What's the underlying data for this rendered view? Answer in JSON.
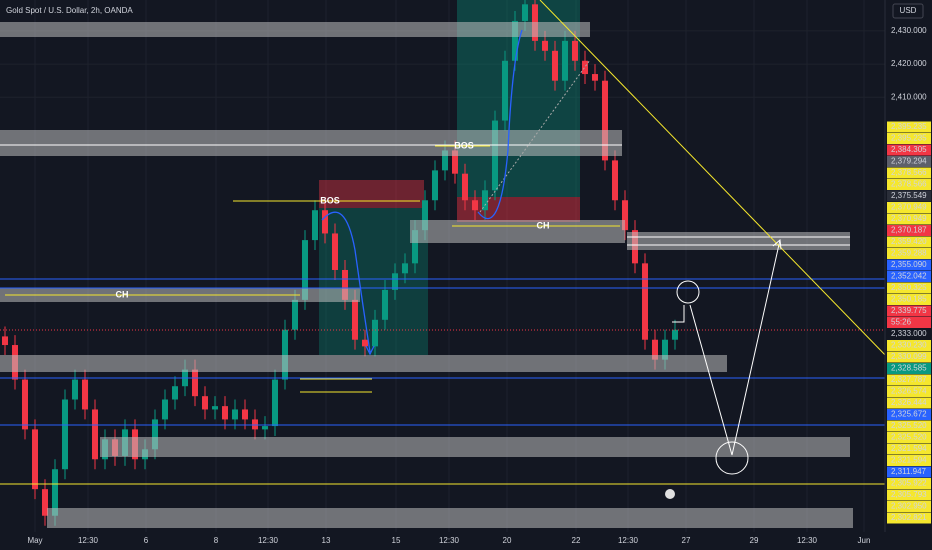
{
  "chart_data": {
    "type": "candlestick",
    "title": "Gold Spot / U.S. Dollar, 2h, OANDA",
    "currency": "USD",
    "countdown": "55:26",
    "up_color": "#089981",
    "down_color": "#f23645",
    "xlim": [
      -0.5,
      88
    ],
    "ylim": [
      2279.1,
      2439.3
    ],
    "xticks": [
      {
        "value": 3,
        "label": "May"
      },
      {
        "value": 8.3,
        "label": "12:30"
      },
      {
        "value": 14.1,
        "label": "6"
      },
      {
        "value": 21.1,
        "label": "8"
      },
      {
        "value": 26.3,
        "label": "12:30"
      },
      {
        "value": 32.1,
        "label": "13"
      },
      {
        "value": 39.1,
        "label": "15"
      },
      {
        "value": 44.4,
        "label": "12:30"
      },
      {
        "value": 50.2,
        "label": "20"
      },
      {
        "value": 57.1,
        "label": "22"
      },
      {
        "value": 62.3,
        "label": "12:30"
      },
      {
        "value": 68.1,
        "label": "27"
      },
      {
        "value": 74.9,
        "label": "29"
      },
      {
        "value": 80.2,
        "label": "12:30"
      },
      {
        "value": 85.9,
        "label": "Jun"
      }
    ],
    "yticks": [
      {
        "value": 2430,
        "label": "2,430.000"
      },
      {
        "value": 2420,
        "label": "2,420.000"
      },
      {
        "value": 2410,
        "label": "2,410.000"
      }
    ],
    "grid": true,
    "open": [
      2338,
      2335.4,
      2325,
      2310,
      2292,
      2284,
      2298,
      2319,
      2325,
      2316,
      2301,
      2307,
      2302,
      2310,
      2301,
      2304,
      2313,
      2319,
      2323,
      2328,
      2320,
      2316,
      2317,
      2313,
      2316,
      2313,
      2310,
      2311,
      2325,
      2340,
      2349,
      2367,
      2376,
      2369,
      2358,
      2349,
      2337,
      2335,
      2343,
      2352,
      2357,
      2360,
      2370,
      2379,
      2388,
      2394,
      2387,
      2379,
      2376,
      2382,
      2403,
      2421,
      2433,
      2438,
      2427,
      2424,
      2415,
      2427,
      2421,
      2417,
      2415,
      2391,
      2379,
      2370,
      2360,
      2337,
      2331,
      2337
    ],
    "high": [
      2341,
      2338.4,
      2328,
      2313,
      2295,
      2301,
      2322,
      2328,
      2328,
      2319,
      2310,
      2310,
      2313,
      2313,
      2307,
      2316,
      2322,
      2326,
      2331,
      2331,
      2323,
      2320,
      2320,
      2319,
      2319,
      2316,
      2314,
      2328,
      2343,
      2352,
      2370,
      2379,
      2379,
      2372,
      2361,
      2352,
      2340,
      2346,
      2355,
      2360,
      2363,
      2373,
      2382,
      2391,
      2397,
      2397,
      2390,
      2382,
      2385,
      2406,
      2424,
      2436,
      2440,
      2440,
      2430,
      2427,
      2430,
      2430,
      2424,
      2420,
      2418,
      2394,
      2382,
      2373,
      2363,
      2340,
      2340,
      2343
    ],
    "low": [
      2332.4,
      2322,
      2307,
      2289,
      2281,
      2281,
      2295,
      2316,
      2313,
      2298,
      2298,
      2299,
      2299,
      2298,
      2298,
      2301,
      2310,
      2316,
      2320,
      2317,
      2313,
      2313,
      2310,
      2310,
      2310,
      2307,
      2307,
      2308,
      2322,
      2337,
      2346,
      2364,
      2366,
      2355,
      2346,
      2334,
      2332,
      2332,
      2340,
      2349,
      2354,
      2357,
      2367,
      2376,
      2385,
      2384,
      2376,
      2373,
      2373,
      2379,
      2400,
      2418,
      2430,
      2424,
      2421,
      2412,
      2412,
      2418,
      2414,
      2412,
      2388,
      2376,
      2367,
      2357,
      2334,
      2328,
      2328,
      2334
    ],
    "close": [
      2335.4,
      2325,
      2310,
      2292,
      2284,
      2298,
      2319,
      2325,
      2316,
      2301,
      2307,
      2302,
      2310,
      2301,
      2304,
      2313,
      2319,
      2323,
      2328,
      2320,
      2316,
      2317,
      2313,
      2316,
      2313,
      2310,
      2311,
      2325,
      2340,
      2349,
      2367,
      2376,
      2369,
      2358,
      2349,
      2337,
      2335,
      2343,
      2352,
      2357,
      2360,
      2370,
      2379,
      2388,
      2394,
      2387,
      2379,
      2376,
      2382,
      2403,
      2421,
      2433,
      2438,
      2427,
      2424,
      2415,
      2427,
      2421,
      2417,
      2415,
      2391,
      2379,
      2370,
      2360,
      2337,
      2331,
      2337,
      2340
    ],
    "price_labels": [
      {
        "value": 2395.235,
        "label": "2,395.235",
        "color": "yellow"
      },
      {
        "value": 2395.235,
        "label": "2,395.235",
        "color": "yellow"
      },
      {
        "value": 2384.305,
        "label": "2,384.305",
        "color": "red"
      },
      {
        "value": 2379.294,
        "label": "2,379.294",
        "color": "gray"
      },
      {
        "value": 2378.566,
        "label": "2,378.566",
        "color": "yellow"
      },
      {
        "value": 2378.566,
        "label": "2,378.566",
        "color": "yellow"
      },
      {
        "value": 2375.549,
        "label": "2,375.549",
        "color": "dark"
      },
      {
        "value": 2370.949,
        "label": "2,370.949",
        "color": "yellow"
      },
      {
        "value": 2370.949,
        "label": "2,370.949",
        "color": "yellow"
      },
      {
        "value": 2370.187,
        "label": "2,370.187",
        "color": "red"
      },
      {
        "value": 2359.42,
        "label": "2,359.420",
        "color": "yellow"
      },
      {
        "value": 2359.288,
        "label": "2,359.288",
        "color": "yellow"
      },
      {
        "value": 2355.09,
        "label": "2,355.090",
        "color": "blue"
      },
      {
        "value": 2352.042,
        "label": "2,352.042",
        "color": "blue"
      },
      {
        "value": 2350.325,
        "label": "2,350.325",
        "color": "yellow"
      },
      {
        "value": 2350.185,
        "label": "2,350.185",
        "color": "yellow"
      },
      {
        "value": 2339.775,
        "label": "2,339.775",
        "color": "red"
      },
      {
        "value": 2333,
        "label": "2,333.000",
        "color": "plain"
      },
      {
        "value": 2330.23,
        "label": "2,330.230",
        "color": "yellow"
      },
      {
        "value": 2330.099,
        "label": "2,330.099",
        "color": "yellow"
      },
      {
        "value": 2328.585,
        "label": "2,328.585",
        "color": "green"
      },
      {
        "value": 2327.787,
        "label": "2,327.787",
        "color": "yellow"
      },
      {
        "value": 2326.574,
        "label": "2,326.574",
        "color": "yellow"
      },
      {
        "value": 2326.444,
        "label": "2,326.444",
        "color": "yellow"
      },
      {
        "value": 2325.672,
        "label": "2,325.672",
        "color": "blue"
      },
      {
        "value": 2325.52,
        "label": "2,325.520",
        "color": "yellow"
      },
      {
        "value": 2325.52,
        "label": "2,325.520",
        "color": "yellow"
      },
      {
        "value": 2321.594,
        "label": "2,321.594",
        "color": "yellow"
      },
      {
        "value": 2321.594,
        "label": "2,321.594",
        "color": "yellow"
      },
      {
        "value": 2311.947,
        "label": "2,311.947",
        "color": "blue"
      },
      {
        "value": 2305.922,
        "label": "2,305.922",
        "color": "yellow"
      },
      {
        "value": 2305.793,
        "label": "2,305.793",
        "color": "yellow"
      },
      {
        "value": 2302.95,
        "label": "2,302.950",
        "color": "yellow"
      },
      {
        "value": 2302.821,
        "label": "2,302.821",
        "color": "yellow"
      }
    ],
    "annotations": [
      "BOS",
      "BOS",
      "CH",
      "CH"
    ]
  }
}
